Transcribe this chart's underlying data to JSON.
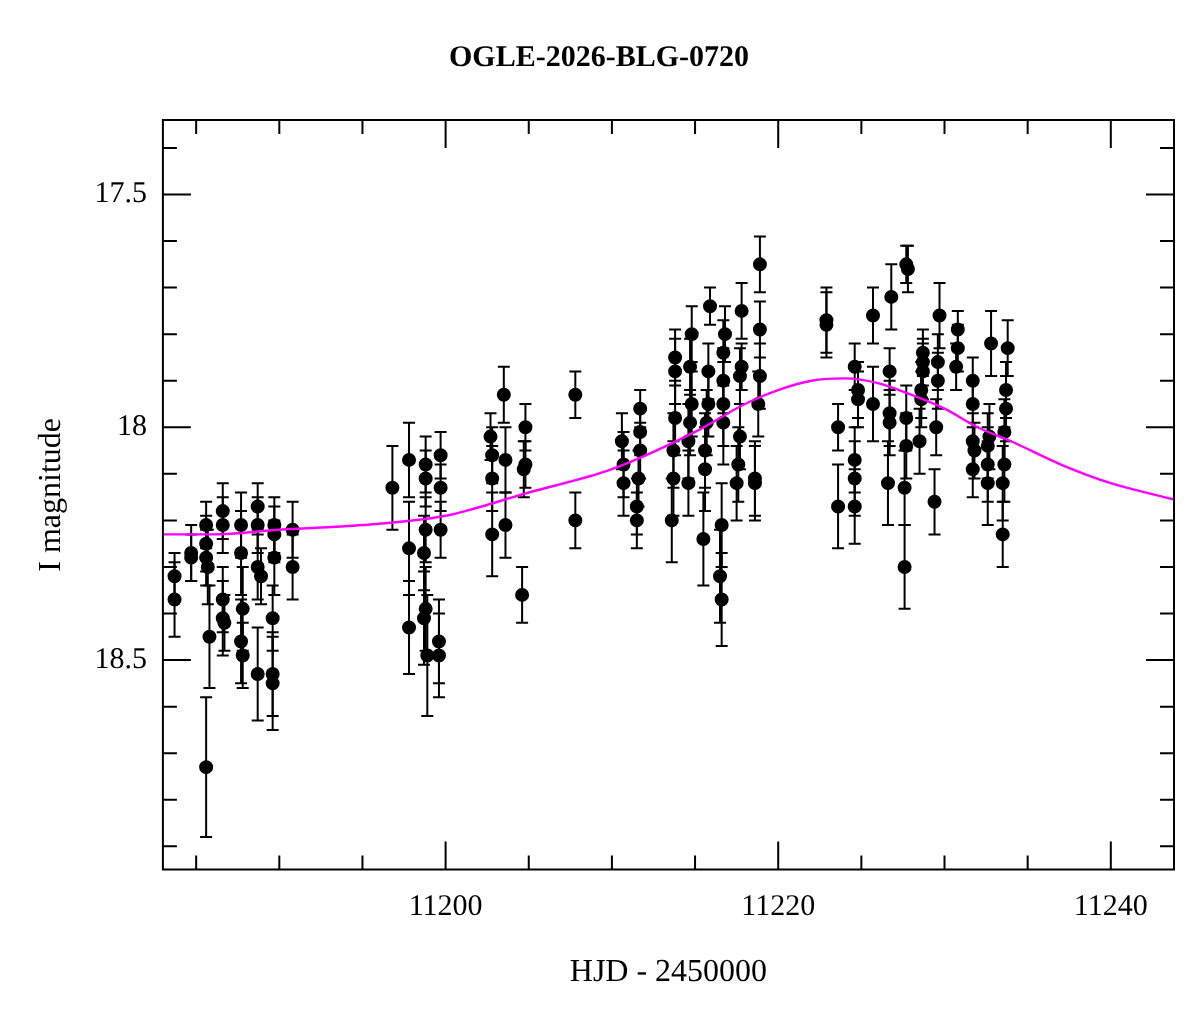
{
  "chart_data": {
    "type": "scatter",
    "title": "OGLE-2026-BLG-0720",
    "xlabel": "HJD - 2450000",
    "ylabel": "I magnitude",
    "xlim": [
      11183,
      11243.8
    ],
    "ylim": [
      18.95,
      17.34
    ],
    "xticks": [
      {
        "value": 11185,
        "label": null
      },
      {
        "value": 11190,
        "label": null
      },
      {
        "value": 11195,
        "label": null
      },
      11200,
      {
        "value": 11205,
        "label": null
      },
      {
        "value": 11210,
        "label": null
      },
      {
        "value": 11215,
        "label": null
      },
      11220,
      {
        "value": 11225,
        "label": null
      },
      {
        "value": 11230,
        "label": null
      },
      {
        "value": 11235,
        "label": null
      },
      11240
    ],
    "yticks": [
      {
        "value": 17.4,
        "label": null
      },
      17.5,
      {
        "value": 17.6,
        "label": null
      },
      {
        "value": 17.7,
        "label": null
      },
      {
        "value": 17.8,
        "label": null
      },
      {
        "value": 17.9,
        "label": null
      },
      18,
      {
        "value": 18.1,
        "label": null
      },
      {
        "value": 18.2,
        "label": null
      },
      {
        "value": 18.3,
        "label": null
      },
      {
        "value": 18.4,
        "label": null
      },
      18.5,
      {
        "value": 18.6,
        "label": null
      },
      {
        "value": 18.7,
        "label": null
      },
      {
        "value": 18.8,
        "label": null
      },
      {
        "value": 18.9,
        "label": null
      }
    ],
    "grid": false,
    "legend": false,
    "marker": "circle",
    "series": [
      {
        "color": "#000000",
        "x": [
          11183.7,
          11183.7,
          11184.7,
          11184.7,
          11185.6,
          11185.6,
          11185.6,
          11185.7,
          11185.8,
          11185.6,
          11186.6,
          11186.6,
          11186.6,
          11186.6,
          11186.7,
          11187.7,
          11187.7,
          11187.8,
          11187.7,
          11187.8,
          11188.7,
          11188.7,
          11188.7,
          11188.9,
          11188.7,
          11189.7,
          11189.7,
          11189.7,
          11189.6,
          11189.6,
          11189.6,
          11190.8,
          11190.8,
          11196.8,
          11197.8,
          11197.8,
          11197.8,
          11198.8,
          11198.8,
          11198.8,
          11198.7,
          11198.8,
          11198.7,
          11198.9,
          11199.7,
          11199.7,
          11199.7,
          11199.6,
          11199.6,
          11202.7,
          11202.8,
          11202.8,
          11202.8,
          11203.5,
          11203.6,
          11203.6,
          11204.8,
          11204.8,
          11204.7,
          11204.6,
          11207.8,
          11207.8,
          11210.6,
          11210.7,
          11210.7,
          11211.7,
          11211.7,
          11211.7,
          11211.6,
          11211.5,
          11211.5,
          11213.8,
          11213.8,
          11213.8,
          11213.7,
          11213.7,
          11213.6,
          11214.8,
          11214.7,
          11214.8,
          11214.7,
          11214.6,
          11214.6,
          11215.9,
          11215.8,
          11215.8,
          11215.7,
          11215.6,
          11215.6,
          11215.5,
          11216.8,
          11216.7,
          11216.7,
          11216.7,
          11216.7,
          11216.6,
          11216.5,
          11216.6,
          11217.8,
          11217.8,
          11217.7,
          11217.7,
          11217.6,
          11217.5,
          11218.9,
          11218.9,
          11218.9,
          11218.8,
          11218.6,
          11218.6,
          11222.9,
          11222.9,
          11223.6,
          11223.6,
          11224.6,
          11224.8,
          11224.8,
          11224.6,
          11224.6,
          11224.6,
          11225.7,
          11225.7,
          11226.8,
          11226.7,
          11226.7,
          11226.7,
          11226.6,
          11227.7,
          11227.8,
          11227.7,
          11227.7,
          11227.6,
          11227.6,
          11228.7,
          11228.7,
          11228.7,
          11228.6,
          11228.6,
          11228.5,
          11229.7,
          11229.6,
          11229.6,
          11229.5,
          11229.4,
          11230.8,
          11230.8,
          11230.7,
          11231.7,
          11231.7,
          11231.7,
          11231.8,
          11231.7,
          11232.8,
          11232.7,
          11232.6,
          11232.6,
          11232.6,
          11233.8,
          11233.7,
          11233.7,
          11233.6,
          11233.6,
          11233.5,
          11233.5
        ],
        "values": [
          18.32,
          18.37,
          18.27,
          18.28,
          18.21,
          18.25,
          18.28,
          18.3,
          18.45,
          18.73,
          18.18,
          18.21,
          18.37,
          18.41,
          18.42,
          18.21,
          18.27,
          18.39,
          18.46,
          18.49,
          18.17,
          18.21,
          18.3,
          18.32,
          18.53,
          18.21,
          18.23,
          18.28,
          18.41,
          18.53,
          18.55,
          18.22,
          18.3,
          18.13,
          18.07,
          18.26,
          18.43,
          18.08,
          18.11,
          18.22,
          18.27,
          18.39,
          18.41,
          18.49,
          18.06,
          18.13,
          18.22,
          18.46,
          18.49,
          18.02,
          18.06,
          18.11,
          18.23,
          17.93,
          18.07,
          18.21,
          18.0,
          18.08,
          18.09,
          18.36,
          17.93,
          18.2,
          18.03,
          18.08,
          18.12,
          17.96,
          18.01,
          18.05,
          18.11,
          18.17,
          18.2,
          17.85,
          17.88,
          17.98,
          18.05,
          18.11,
          18.2,
          17.8,
          17.87,
          17.95,
          17.99,
          18.03,
          18.12,
          17.74,
          17.88,
          17.95,
          17.99,
          18.05,
          18.09,
          18.24,
          17.8,
          17.84,
          17.9,
          17.95,
          17.99,
          18.21,
          18.32,
          18.37,
          17.75,
          17.87,
          17.89,
          18.02,
          18.08,
          18.12,
          17.65,
          17.79,
          17.89,
          17.95,
          18.11,
          18.12,
          17.77,
          17.78,
          18.0,
          18.17,
          17.87,
          17.92,
          17.94,
          18.07,
          18.11,
          18.17,
          17.76,
          17.95,
          17.72,
          17.88,
          17.97,
          17.99,
          18.12,
          17.65,
          17.66,
          17.98,
          18.04,
          18.13,
          18.3,
          17.84,
          17.86,
          17.88,
          17.92,
          17.94,
          18.03,
          17.76,
          17.86,
          17.9,
          18.0,
          18.16,
          17.79,
          17.83,
          17.87,
          17.9,
          17.95,
          18.03,
          18.05,
          18.09,
          17.82,
          18.02,
          18.04,
          18.08,
          18.12,
          17.83,
          17.92,
          17.96,
          18.01,
          18.08,
          18.12,
          18.23
        ],
        "errors": [
          0.05,
          0.08,
          0.06,
          0.05,
          0.05,
          0.06,
          0.06,
          0.08,
          0.11,
          0.15,
          0.06,
          0.06,
          0.07,
          0.08,
          0.06,
          0.07,
          0.09,
          0.09,
          0.09,
          0.07,
          0.05,
          0.06,
          0.07,
          0.06,
          0.1,
          0.06,
          0.06,
          0.08,
          0.07,
          0.09,
          0.1,
          0.06,
          0.07,
          0.09,
          0.08,
          0.1,
          0.1,
          0.06,
          0.06,
          0.07,
          0.08,
          0.09,
          0.1,
          0.13,
          0.05,
          0.05,
          0.06,
          0.09,
          0.09,
          0.05,
          0.06,
          0.07,
          0.09,
          0.06,
          0.07,
          0.07,
          0.05,
          0.05,
          0.06,
          0.06,
          0.05,
          0.06,
          0.06,
          0.07,
          0.07,
          0.04,
          0.05,
          0.06,
          0.06,
          0.06,
          0.06,
          0.06,
          0.07,
          0.08,
          0.08,
          0.08,
          0.09,
          0.06,
          0.06,
          0.07,
          0.07,
          0.08,
          0.07,
          0.04,
          0.06,
          0.07,
          0.07,
          0.08,
          0.09,
          0.1,
          0.06,
          0.07,
          0.07,
          0.09,
          0.09,
          0.09,
          0.1,
          0.1,
          0.06,
          0.05,
          0.06,
          0.07,
          0.08,
          0.08,
          0.06,
          0.06,
          0.07,
          0.07,
          0.08,
          0.08,
          0.07,
          0.07,
          0.05,
          0.09,
          0.05,
          0.06,
          0.06,
          0.07,
          0.08,
          0.08,
          0.06,
          0.08,
          0.07,
          0.05,
          0.07,
          0.07,
          0.09,
          0.04,
          0.05,
          0.07,
          0.07,
          0.08,
          0.09,
          0.05,
          0.05,
          0.06,
          0.06,
          0.06,
          0.07,
          0.07,
          0.06,
          0.06,
          0.06,
          0.07,
          0.04,
          0.05,
          0.05,
          0.05,
          0.05,
          0.06,
          0.06,
          0.06,
          0.07,
          0.07,
          0.07,
          0.08,
          0.09,
          0.06,
          0.06,
          0.07,
          0.07,
          0.08,
          0.08,
          0.07
        ]
      },
      {
        "type": "line",
        "color": "#ff00ff",
        "marker": "none",
        "line_style": "solid",
        "x": [
          11183,
          11186,
          11190,
          11195,
          11200,
          11205,
          11210,
          11215,
          11218,
          11220,
          11222,
          11224,
          11226,
          11228,
          11230,
          11232,
          11234,
          11237,
          11240,
          11243.8
        ],
        "values": [
          18.23,
          18.23,
          18.22,
          18.21,
          18.19,
          18.14,
          18.09,
          18.01,
          17.95,
          17.92,
          17.9,
          17.895,
          17.905,
          17.93,
          17.96,
          18.0,
          18.03,
          18.08,
          18.12,
          18.155
        ]
      }
    ]
  }
}
